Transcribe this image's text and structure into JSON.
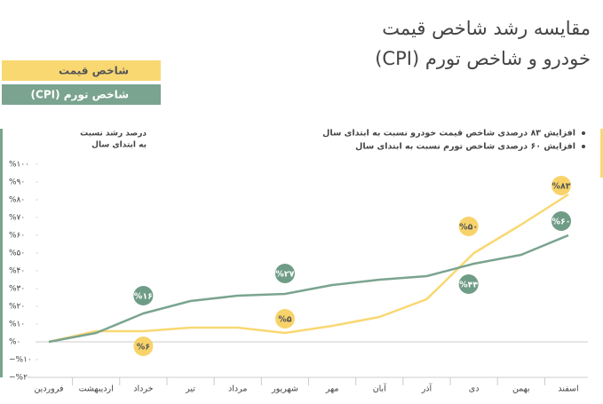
{
  "chart_data": {
    "type": "line",
    "title": [
      "مقایسه رشد شاخص قیمت",
      "خودرو و  شاخص تورم (CPI)"
    ],
    "notes": [
      "افزایش ۸۳ درصدی شاخص قیمت خودرو نسبت به ابتدای سال",
      "افزایش ۶۰ درصدی شاخص تورم نسبت به ابتدای سال"
    ],
    "y_label": [
      "درصد رشد نسبت",
      "به ابتدای سال"
    ],
    "categories": [
      "فروردین",
      "اردیبهشت",
      "خرداد",
      "تیر",
      "مرداد",
      "شهریور",
      "مهر",
      "آبان",
      "آذر",
      "دی",
      "بهمن",
      "اسفند"
    ],
    "series": [
      {
        "name": "شاخص قیمت",
        "color": "#f9d872",
        "values": [
          0,
          6,
          6,
          8,
          8,
          5,
          9,
          14,
          24,
          50,
          66,
          83
        ],
        "value_labels": [
          null,
          null,
          "%۶",
          null,
          null,
          "%۵",
          null,
          null,
          null,
          "%۵۰",
          null,
          "%۸۳"
        ]
      },
      {
        "name": "شاخص تورم (CPI)",
        "color": "#7aa48f",
        "values": [
          0,
          5,
          16,
          23,
          26,
          27,
          32,
          35,
          37,
          44,
          49,
          60
        ],
        "value_labels": [
          null,
          null,
          "%۱۶",
          null,
          null,
          "%۲۷",
          null,
          null,
          null,
          "%۴۴",
          null,
          "%۶۰"
        ]
      }
    ],
    "ylim": [
      -20,
      100
    ],
    "yticks": [
      {
        "value": 100,
        "label": "%۱۰۰"
      },
      {
        "value": 90,
        "label": "%۹۰"
      },
      {
        "value": 80,
        "label": "%۸۰"
      },
      {
        "value": 70,
        "label": "%۷۰"
      },
      {
        "value": 60,
        "label": "%۶۰"
      },
      {
        "value": 50,
        "label": "%۵۰"
      },
      {
        "value": 40,
        "label": "%۴۰"
      },
      {
        "value": 30,
        "label": "%۳۰"
      },
      {
        "value": 20,
        "label": "%۲۰"
      },
      {
        "value": 10,
        "label": "%۱۰"
      },
      {
        "value": 0,
        "label": "%۰"
      },
      {
        "value": -10,
        "label": "−%۱۰"
      },
      {
        "value": -20,
        "label": "−%۲۰"
      }
    ]
  }
}
